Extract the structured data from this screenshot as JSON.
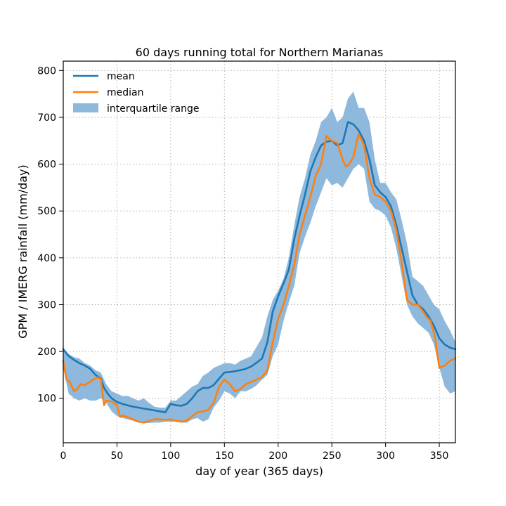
{
  "chart_data": {
    "type": "line",
    "title": "60 days running total for Northern Marianas",
    "xlabel": "day of year (365 days)",
    "ylabel": "GPM / IMERG rainfall (mm/day)",
    "xlim": [
      0,
      365
    ],
    "ylim": [
      5,
      820
    ],
    "xticks": [
      0,
      50,
      100,
      150,
      200,
      250,
      300,
      350
    ],
    "yticks": [
      100,
      200,
      300,
      400,
      500,
      600,
      700,
      800
    ],
    "grid": true,
    "legend_position": "upper-left",
    "colors": {
      "mean": "#1f77b4",
      "median": "#ff7f0e",
      "iqr": "#8fb9dc"
    },
    "series": [
      {
        "name": "mean",
        "x": [
          0,
          5,
          10,
          15,
          20,
          25,
          30,
          35,
          38,
          42,
          45,
          50,
          55,
          60,
          65,
          70,
          75,
          80,
          85,
          90,
          95,
          100,
          105,
          110,
          115,
          120,
          125,
          130,
          135,
          140,
          145,
          150,
          155,
          160,
          165,
          170,
          175,
          180,
          185,
          190,
          195,
          200,
          205,
          210,
          215,
          220,
          225,
          230,
          235,
          240,
          245,
          250,
          255,
          260,
          265,
          270,
          275,
          280,
          285,
          290,
          295,
          300,
          305,
          310,
          315,
          320,
          325,
          330,
          335,
          340,
          345,
          350,
          355,
          360,
          365
        ],
        "y": [
          205,
          190,
          182,
          175,
          170,
          163,
          150,
          142,
          122,
          108,
          100,
          92,
          88,
          85,
          82,
          80,
          78,
          76,
          74,
          72,
          70,
          88,
          85,
          84,
          88,
          100,
          115,
          122,
          122,
          128,
          142,
          155,
          156,
          158,
          160,
          163,
          168,
          176,
          185,
          220,
          285,
          318,
          345,
          375,
          440,
          490,
          535,
          585,
          615,
          640,
          648,
          650,
          640,
          645,
          690,
          685,
          672,
          650,
          610,
          555,
          540,
          530,
          510,
          470,
          420,
          370,
          320,
          300,
          290,
          275,
          255,
          228,
          215,
          208,
          205
        ]
      },
      {
        "name": "median",
        "x": [
          0,
          3,
          6,
          10,
          13,
          16,
          20,
          25,
          28,
          32,
          35,
          38,
          40,
          45,
          50,
          53,
          55,
          60,
          65,
          70,
          75,
          80,
          85,
          90,
          95,
          100,
          105,
          110,
          115,
          120,
          125,
          130,
          135,
          140,
          145,
          150,
          155,
          160,
          165,
          170,
          175,
          180,
          185,
          190,
          195,
          200,
          205,
          210,
          215,
          220,
          225,
          230,
          235,
          240,
          245,
          250,
          255,
          260,
          263,
          266,
          270,
          275,
          280,
          285,
          290,
          295,
          300,
          305,
          310,
          315,
          320,
          325,
          330,
          335,
          338,
          342,
          346,
          350,
          355,
          360,
          365
        ],
        "y": [
          180,
          140,
          135,
          115,
          120,
          130,
          128,
          135,
          140,
          145,
          140,
          85,
          95,
          93,
          85,
          60,
          63,
          60,
          55,
          50,
          48,
          52,
          55,
          55,
          54,
          55,
          52,
          50,
          52,
          62,
          70,
          72,
          75,
          90,
          125,
          140,
          130,
          115,
          120,
          130,
          135,
          140,
          145,
          160,
          220,
          270,
          300,
          340,
          385,
          450,
          490,
          530,
          575,
          600,
          660,
          650,
          645,
          610,
          595,
          600,
          615,
          665,
          640,
          570,
          535,
          530,
          520,
          500,
          460,
          390,
          310,
          300,
          300,
          285,
          275,
          265,
          230,
          165,
          170,
          180,
          185
        ]
      }
    ],
    "band": {
      "name": "interquartile range",
      "x": [
        0,
        5,
        10,
        15,
        20,
        25,
        30,
        35,
        40,
        45,
        50,
        55,
        60,
        65,
        70,
        75,
        80,
        85,
        90,
        95,
        100,
        105,
        110,
        115,
        120,
        125,
        130,
        135,
        140,
        145,
        150,
        155,
        160,
        165,
        170,
        175,
        180,
        185,
        190,
        195,
        200,
        205,
        210,
        215,
        220,
        225,
        230,
        235,
        240,
        245,
        250,
        255,
        260,
        265,
        270,
        275,
        280,
        285,
        290,
        295,
        300,
        305,
        310,
        315,
        320,
        325,
        330,
        335,
        340,
        345,
        350,
        355,
        360,
        365
      ],
      "lower": [
        165,
        110,
        100,
        95,
        100,
        95,
        95,
        100,
        90,
        72,
        62,
        58,
        55,
        52,
        48,
        47,
        47,
        48,
        48,
        50,
        50,
        50,
        48,
        48,
        55,
        58,
        50,
        55,
        80,
        95,
        115,
        110,
        100,
        115,
        115,
        120,
        128,
        140,
        150,
        190,
        215,
        265,
        305,
        340,
        410,
        445,
        475,
        510,
        540,
        570,
        555,
        560,
        550,
        570,
        590,
        600,
        590,
        520,
        505,
        500,
        490,
        465,
        420,
        360,
        300,
        275,
        260,
        250,
        240,
        215,
        165,
        125,
        110,
        115
      ],
      "upper": [
        200,
        195,
        188,
        185,
        175,
        170,
        160,
        155,
        130,
        115,
        110,
        105,
        105,
        100,
        95,
        100,
        90,
        82,
        80,
        80,
        95,
        95,
        105,
        115,
        125,
        130,
        148,
        155,
        165,
        170,
        175,
        175,
        172,
        180,
        185,
        190,
        210,
        230,
        275,
        310,
        330,
        355,
        400,
        470,
        530,
        570,
        620,
        650,
        690,
        700,
        720,
        690,
        700,
        740,
        755,
        720,
        720,
        690,
        610,
        560,
        560,
        540,
        525,
        480,
        430,
        360,
        350,
        340,
        320,
        300,
        290,
        265,
        245,
        220
      ]
    }
  }
}
